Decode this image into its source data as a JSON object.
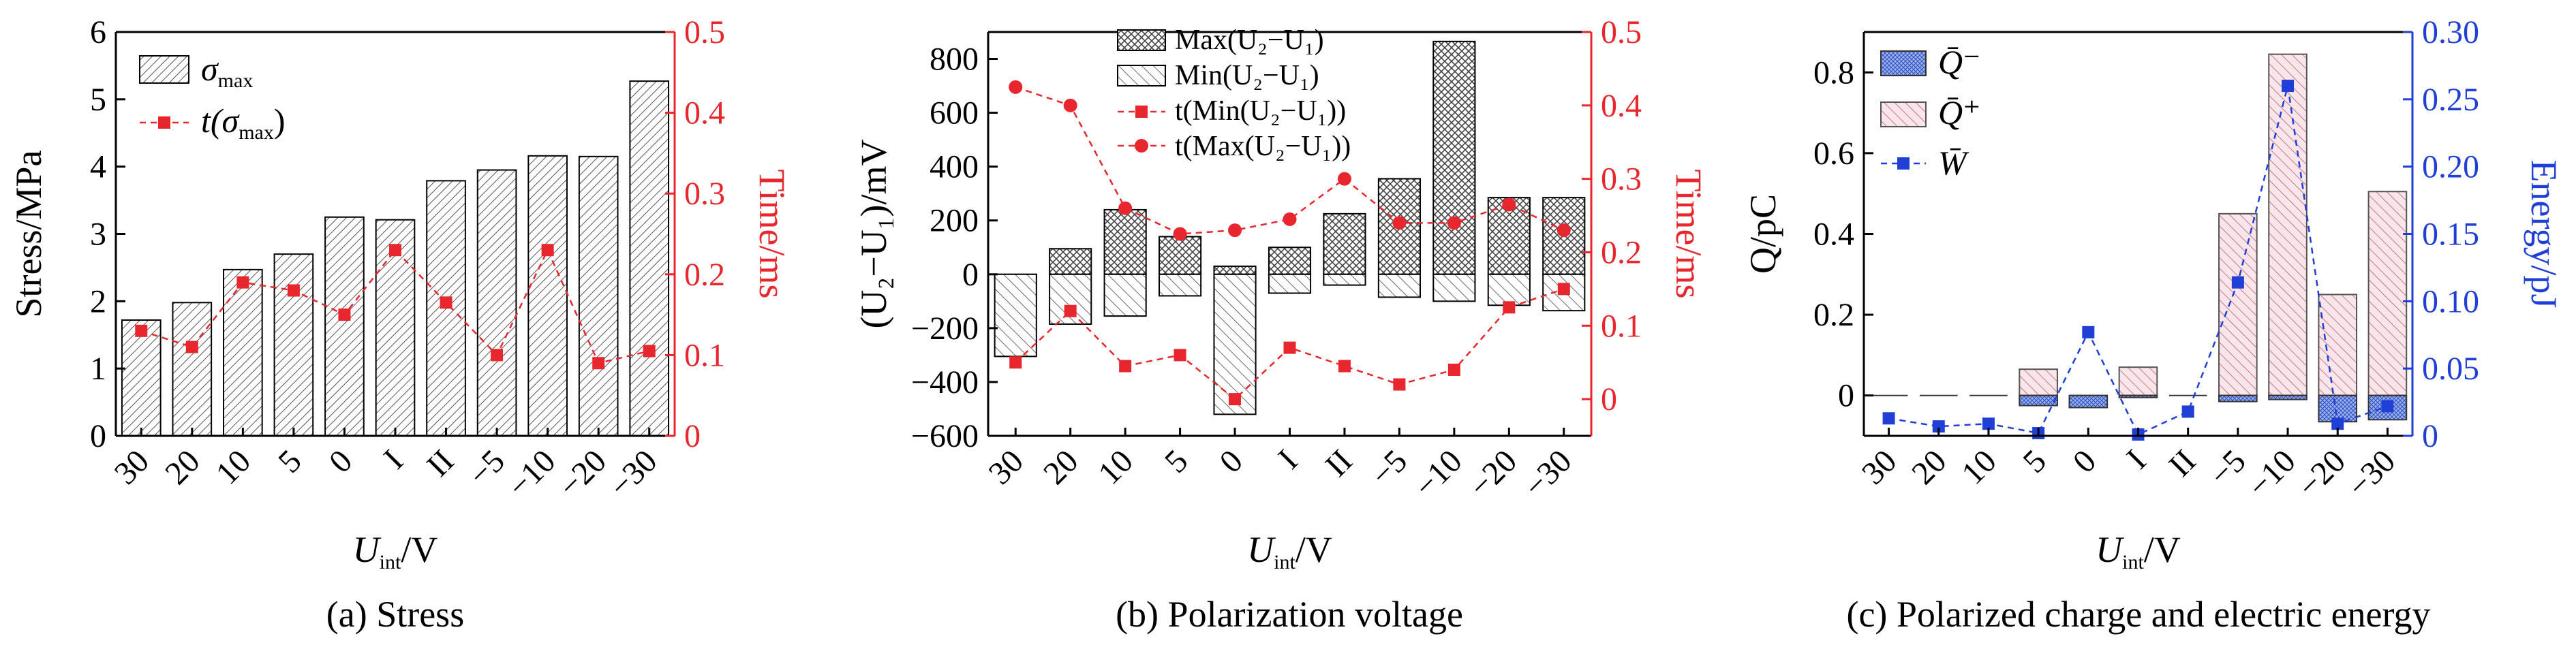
{
  "colors": {
    "axis": "#000000",
    "right_a": "#e8262d",
    "right_b": "#e8262d",
    "right_c": "#1f3fd6",
    "marker_c": "#1f3fd6",
    "bar_fill": "#808080",
    "qplus": "#c0506a"
  },
  "chart_data": [
    {
      "id": "a",
      "type": "bar",
      "caption": "(a) Stress",
      "xlabel": "U",
      "xlabel_sub": "int",
      "xlabel_unit": "/V",
      "ylabel": "Stress/MPa",
      "ylabel_right": "Time/ms",
      "categories": [
        "30",
        "20",
        "10",
        "5",
        "0",
        "I",
        "II",
        "−5",
        "−10",
        "−20",
        "−30"
      ],
      "ylim": [
        0,
        6
      ],
      "yticks": [
        "0",
        "1",
        "2",
        "3",
        "4",
        "5",
        "6"
      ],
      "ylim_right": [
        0,
        0.5
      ],
      "yticks_right": [
        "0",
        "0.1",
        "0.2",
        "0.3",
        "0.4",
        "0.5"
      ],
      "legend": {
        "placement": "top-left",
        "bar": "σ",
        "bar_sub": "max",
        "line": "t(σ",
        "line_sub": "max",
        "line_close": ")"
      },
      "series": [
        {
          "key": "sigma_max",
          "kind": "bar",
          "values": [
            1.72,
            1.98,
            2.47,
            2.7,
            3.25,
            3.21,
            3.79,
            3.95,
            4.16,
            4.15,
            5.27
          ]
        },
        {
          "key": "t_sigma_max",
          "kind": "line",
          "axis": "right",
          "values": [
            0.13,
            0.11,
            0.19,
            0.18,
            0.15,
            0.23,
            0.165,
            0.1,
            0.23,
            0.09,
            0.105
          ]
        }
      ]
    },
    {
      "id": "b",
      "type": "bar",
      "caption": "(b) Polarization voltage",
      "xlabel": "U",
      "xlabel_sub": "int",
      "xlabel_unit": "/V",
      "ylabel": "(U₂−U₁)/mV",
      "ylabel_right": "Time/ms",
      "categories": [
        "30",
        "20",
        "10",
        "5",
        "0",
        "I",
        "II",
        "−5",
        "−10",
        "−20",
        "−30"
      ],
      "ylim": [
        -600,
        900
      ],
      "yticks": [
        "−600",
        "−400",
        "−200",
        "0",
        "200",
        "400",
        "600",
        "800"
      ],
      "ylim_right": [
        -0.05,
        0.5
      ],
      "yticks_right": [
        "0",
        "0.1",
        "0.2",
        "0.3",
        "0.4",
        "0.5"
      ],
      "legend": {
        "placement": "top-center",
        "max_bar": "Max(U₂−U₁)",
        "min_bar": "Min(U₂−U₁)",
        "t_min": "t(Min(U₂−U₁))",
        "t_max": "t(Max(U₂−U₁))"
      },
      "series": [
        {
          "key": "max",
          "kind": "bar",
          "values": [
            -10,
            95,
            240,
            140,
            30,
            100,
            225,
            355,
            865,
            285,
            285
          ]
        },
        {
          "key": "min",
          "kind": "bar",
          "values": [
            -305,
            -185,
            -155,
            -80,
            -520,
            -70,
            -40,
            -85,
            -100,
            -115,
            -135
          ]
        },
        {
          "key": "t_min",
          "kind": "line",
          "axis": "right",
          "marker": "square",
          "values": [
            0.05,
            0.12,
            0.045,
            0.06,
            0.0,
            0.07,
            0.045,
            0.02,
            0.04,
            0.125,
            0.15
          ]
        },
        {
          "key": "t_max",
          "kind": "line",
          "axis": "right",
          "marker": "circle",
          "values": [
            0.425,
            0.4,
            0.26,
            0.225,
            0.23,
            0.245,
            0.3,
            0.24,
            0.24,
            0.265,
            0.23
          ]
        }
      ]
    },
    {
      "id": "c",
      "type": "bar",
      "caption": "(c) Polarized charge and electric energy",
      "xlabel": "U",
      "xlabel_sub": "int",
      "xlabel_unit": "/V",
      "ylabel": "Q/pC",
      "ylabel_right": "Energy/pJ",
      "categories": [
        "30",
        "20",
        "10",
        "5",
        "0",
        "I",
        "II",
        "−5",
        "−10",
        "−20",
        "−30"
      ],
      "ylim": [
        -0.1,
        0.9
      ],
      "yticks": [
        "0",
        "0.2",
        "0.4",
        "0.6",
        "0.8"
      ],
      "ylim_right": [
        0,
        0.3
      ],
      "yticks_right": [
        "0",
        "0.05",
        "0.10",
        "0.15",
        "0.20",
        "0.25",
        "0.30"
      ],
      "legend": {
        "placement": "top-left",
        "q_minus": "Q̄⁻",
        "q_plus": "Q̄⁺",
        "w": "W̄"
      },
      "series": [
        {
          "key": "q_minus",
          "kind": "bar",
          "values": [
            0,
            0,
            0,
            -0.025,
            -0.03,
            -0.005,
            0,
            -0.015,
            -0.01,
            -0.065,
            -0.06
          ]
        },
        {
          "key": "q_plus",
          "kind": "bar",
          "values": [
            0,
            0,
            0,
            0.065,
            0.0,
            0.07,
            0,
            0.45,
            0.845,
            0.25,
            0.505
          ]
        },
        {
          "key": "w",
          "kind": "line",
          "axis": "right",
          "marker": "square",
          "values": [
            0.013,
            0.007,
            0.009,
            0.002,
            0.077,
            0.001,
            0.018,
            0.114,
            0.26,
            0.009,
            0.022
          ]
        }
      ]
    }
  ]
}
